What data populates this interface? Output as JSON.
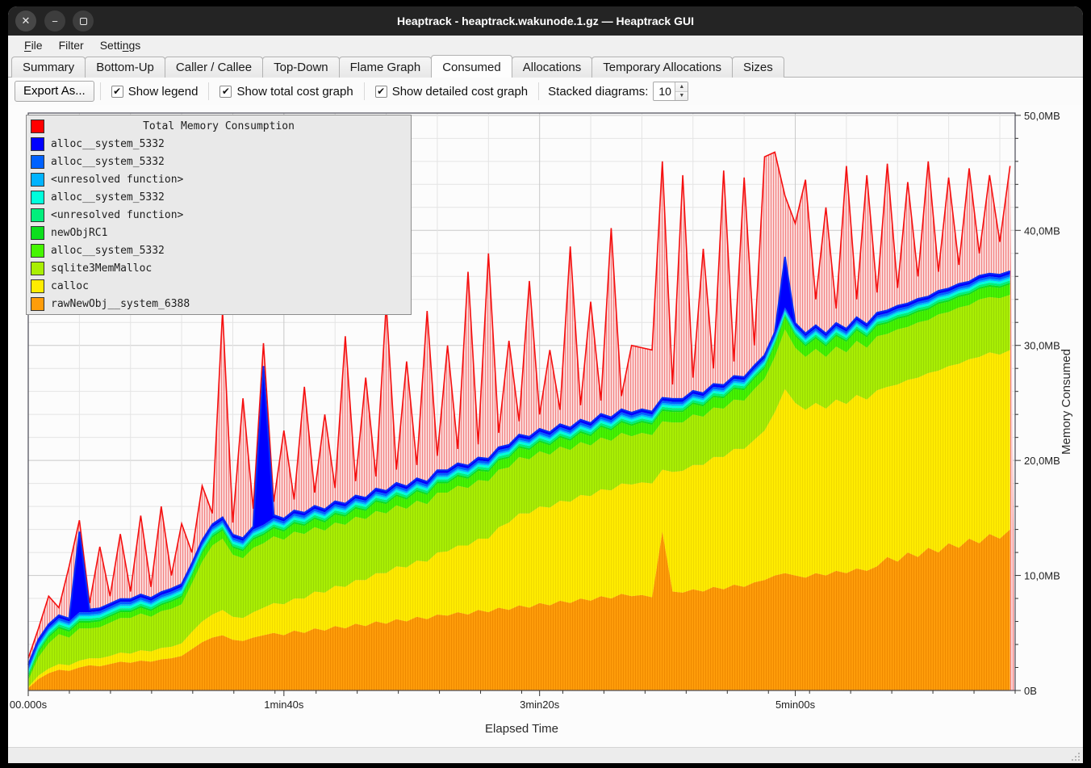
{
  "window": {
    "title": "Heaptrack - heaptrack.wakunode.1.gz — Heaptrack GUI",
    "controls": {
      "close": "✕",
      "minimize": "−",
      "maximize": ""
    }
  },
  "menu": {
    "items": [
      {
        "label": "File",
        "underline_index": 0
      },
      {
        "label": "Filter",
        "underline_index": -1
      },
      {
        "label": "Settings",
        "underline_index": 5
      }
    ]
  },
  "tabs": {
    "labels": [
      "Summary",
      "Bottom-Up",
      "Caller / Callee",
      "Top-Down",
      "Flame Graph",
      "Consumed",
      "Allocations",
      "Temporary Allocations",
      "Sizes"
    ],
    "active": "Consumed"
  },
  "toolbar": {
    "export_label": "Export As...",
    "checkboxes": [
      {
        "label": "Show legend",
        "checked": true
      },
      {
        "label": "Show total cost graph",
        "checked": true
      },
      {
        "label": "Show detailed cost graph",
        "checked": true
      }
    ],
    "stacked_label": "Stacked diagrams:",
    "stacked_value": "10",
    "check_glyph": "✔"
  },
  "chart_data": {
    "type": "area",
    "title": "Total Memory Consumption",
    "xlabel": "Elapsed Time",
    "ylabel": "Memory Consumed",
    "xlim": [
      0,
      386
    ],
    "ylim": [
      0,
      50.2
    ],
    "grid": {
      "x_step_s": 20,
      "y_step_mb": 2
    },
    "x_ticks": [
      {
        "t": 0,
        "label": "00.000s"
      },
      {
        "t": 100,
        "label": "1min40s"
      },
      {
        "t": 200,
        "label": "3min20s"
      },
      {
        "t": 300,
        "label": "5min00s"
      }
    ],
    "y_ticks": [
      {
        "mb": 0,
        "label": "0B"
      },
      {
        "mb": 10,
        "label": "10,0MB"
      },
      {
        "mb": 20,
        "label": "20,0MB"
      },
      {
        "mb": 30,
        "label": "30,0MB"
      },
      {
        "mb": 40,
        "label": "40,0MB"
      },
      {
        "mb": 50,
        "label": "50,0MB"
      }
    ],
    "legend": {
      "title": "Total Memory Consumption",
      "title_color": "#ff0000",
      "items": [
        {
          "label": "alloc__system_5332",
          "color": "#0000ff"
        },
        {
          "label": "alloc__system_5332",
          "color": "#0061ff"
        },
        {
          "label": "<unresolved function>",
          "color": "#00b3ff"
        },
        {
          "label": "alloc__system_5332",
          "color": "#00ffdc"
        },
        {
          "label": "<unresolved function>",
          "color": "#00ef7c"
        },
        {
          "label": "newObjRC1",
          "color": "#0cdf1d"
        },
        {
          "label": "alloc__system_5332",
          "color": "#46f502"
        },
        {
          "label": "sqlite3MemMalloc",
          "color": "#a9ef04"
        },
        {
          "label": "calloc",
          "color": "#ffec00"
        },
        {
          "label": "rawNewObj__system_6388",
          "color": "#ff9d0a"
        }
      ]
    },
    "columns": [
      "t_seconds",
      "rawNewObj__system_6388",
      "calloc",
      "sqlite3MemMalloc",
      "alloc__system_5332_green",
      "alloc__system_5332_darkblue",
      "total_MB"
    ],
    "series": [
      {
        "name": "rawNewObj__system_6388",
        "color": "#ff9d0a",
        "stripe": "#ef8a00",
        "row": 1
      },
      {
        "name": "calloc",
        "color": "#ffec00",
        "stripe": "#f0da00",
        "row": 2
      },
      {
        "name": "sqlite3MemMalloc",
        "color": "#a9ef04",
        "stripe": "#99d904",
        "row": 3
      },
      {
        "name": "alloc__system_5332",
        "color": "#46f502",
        "stripe": "#3cdd00",
        "row": 4
      },
      {
        "name": "newObjRC1",
        "color": "#0cdf1d",
        "const": 0.15
      },
      {
        "name": "<unresolved function>",
        "color": "#00ef7c",
        "const": 0.2
      },
      {
        "name": "alloc__system_5332",
        "color": "#00ffdc",
        "const": 0.2
      },
      {
        "name": "<unresolved function>",
        "color": "#00b3ff",
        "const": 0.15
      },
      {
        "name": "alloc__system_5332",
        "color": "#0061ff",
        "const": 0.2
      },
      {
        "name": "alloc__system_5332",
        "color": "#0000ff",
        "row": 5
      }
    ],
    "total": {
      "name": "Total Memory Consumption",
      "line_color": "#f50f0f",
      "fill_bg": "#fbd9d9",
      "fill_stripe": "#f28282",
      "row": 6
    },
    "cap_line_color": "#0a2cf5",
    "rows": [
      [
        0,
        0.2,
        0.1,
        0.6,
        0.2,
        0.25,
        2.8
      ],
      [
        4,
        1.0,
        0.3,
        1.6,
        0.4,
        0.25,
        5.4
      ],
      [
        8,
        1.5,
        0.4,
        2.2,
        0.5,
        0.25,
        8.2
      ],
      [
        12,
        1.8,
        0.5,
        2.6,
        0.5,
        0.25,
        7.2
      ],
      [
        16,
        1.7,
        0.5,
        2.4,
        0.5,
        0.25,
        10.8
      ],
      [
        20,
        2.0,
        0.6,
        2.8,
        0.5,
        7.0,
        14.8
      ],
      [
        24,
        2.2,
        0.6,
        2.6,
        0.5,
        0.25,
        7.6
      ],
      [
        28,
        2.1,
        0.7,
        2.7,
        0.5,
        0.25,
        12.5
      ],
      [
        32,
        2.3,
        0.7,
        2.9,
        0.5,
        0.25,
        8.2
      ],
      [
        36,
        2.5,
        0.8,
        3.0,
        0.5,
        0.25,
        13.6
      ],
      [
        40,
        2.4,
        0.8,
        3.1,
        0.5,
        0.25,
        8.6
      ],
      [
        44,
        2.6,
        0.9,
        3.2,
        0.5,
        0.25,
        15.2
      ],
      [
        48,
        2.5,
        0.9,
        3.0,
        0.5,
        0.25,
        9.0
      ],
      [
        52,
        2.7,
        1.0,
        3.2,
        0.5,
        0.25,
        16.0
      ],
      [
        56,
        2.8,
        1.0,
        3.3,
        0.6,
        0.25,
        10.0
      ],
      [
        60,
        3.0,
        1.1,
        3.4,
        0.6,
        0.25,
        14.5
      ],
      [
        64,
        3.6,
        1.5,
        4.2,
        0.6,
        0.25,
        12.0
      ],
      [
        68,
        4.2,
        1.8,
        5.2,
        0.7,
        0.25,
        17.8
      ],
      [
        72,
        4.6,
        2.0,
        6.0,
        0.7,
        0.25,
        15.4
      ],
      [
        76,
        4.8,
        2.2,
        6.2,
        0.7,
        0.25,
        33.0
      ],
      [
        80,
        4.4,
        2.0,
        5.4,
        0.6,
        0.25,
        14.6
      ],
      [
        84,
        4.3,
        2.0,
        5.2,
        0.6,
        0.25,
        25.4
      ],
      [
        88,
        4.6,
        2.2,
        5.6,
        0.7,
        0.25,
        15.8
      ],
      [
        92,
        4.8,
        2.4,
        5.6,
        0.7,
        13.8,
        30.2
      ],
      [
        96,
        5.0,
        2.6,
        5.8,
        0.7,
        0.25,
        16.4
      ],
      [
        100,
        4.8,
        2.7,
        5.6,
        0.7,
        0.25,
        22.6
      ],
      [
        104,
        5.2,
        2.8,
        5.8,
        0.7,
        0.25,
        16.6
      ],
      [
        108,
        5.0,
        3.0,
        5.6,
        0.7,
        0.25,
        26.4
      ],
      [
        112,
        5.4,
        3.2,
        5.6,
        0.7,
        0.25,
        17.2
      ],
      [
        116,
        5.2,
        3.3,
        5.4,
        0.7,
        0.25,
        24.0
      ],
      [
        120,
        5.6,
        3.5,
        5.5,
        0.7,
        0.25,
        17.6
      ],
      [
        124,
        5.4,
        3.6,
        5.4,
        0.7,
        0.25,
        30.8
      ],
      [
        128,
        5.8,
        3.8,
        5.5,
        0.7,
        0.25,
        18.2
      ],
      [
        132,
        5.6,
        4.0,
        5.3,
        0.7,
        0.25,
        27.2
      ],
      [
        136,
        6.0,
        4.2,
        5.4,
        0.8,
        0.25,
        18.6
      ],
      [
        140,
        5.8,
        4.4,
        5.2,
        0.8,
        0.25,
        33.6
      ],
      [
        144,
        6.2,
        4.6,
        5.3,
        0.8,
        0.25,
        19.2
      ],
      [
        148,
        6.0,
        4.7,
        5.1,
        0.8,
        0.25,
        28.6
      ],
      [
        152,
        6.4,
        4.9,
        5.2,
        0.8,
        0.25,
        19.6
      ],
      [
        156,
        6.2,
        5.0,
        5.0,
        0.8,
        0.25,
        33.0
      ],
      [
        160,
        6.6,
        5.4,
        5.2,
        0.8,
        0.25,
        20.4
      ],
      [
        164,
        6.5,
        5.6,
        5.1,
        0.8,
        0.25,
        30.0
      ],
      [
        168,
        6.8,
        5.8,
        5.2,
        0.8,
        0.25,
        21.0
      ],
      [
        172,
        6.6,
        6.0,
        5.0,
        0.8,
        0.25,
        36.4
      ],
      [
        176,
        7.0,
        6.2,
        5.1,
        0.8,
        0.25,
        21.4
      ],
      [
        180,
        6.8,
        6.4,
        5.0,
        0.8,
        0.25,
        38.0
      ],
      [
        184,
        7.2,
        7.0,
        5.0,
        0.8,
        0.25,
        22.4
      ],
      [
        188,
        7.0,
        7.6,
        4.8,
        0.8,
        0.25,
        30.4
      ],
      [
        192,
        7.4,
        8.0,
        4.9,
        0.8,
        0.25,
        23.4
      ],
      [
        196,
        7.2,
        8.2,
        4.7,
        0.8,
        0.25,
        35.6
      ],
      [
        200,
        7.6,
        8.4,
        4.8,
        0.8,
        0.25,
        24.0
      ],
      [
        204,
        7.4,
        8.5,
        4.6,
        0.8,
        0.25,
        29.6
      ],
      [
        208,
        7.8,
        8.7,
        4.7,
        0.8,
        0.25,
        24.4
      ],
      [
        212,
        7.6,
        8.8,
        4.5,
        0.8,
        0.25,
        38.6
      ],
      [
        216,
        8.0,
        9.0,
        4.6,
        0.8,
        0.25,
        24.8
      ],
      [
        220,
        7.8,
        9.1,
        4.4,
        0.8,
        0.25,
        33.8
      ],
      [
        224,
        8.2,
        9.3,
        4.5,
        0.9,
        0.25,
        25.2
      ],
      [
        228,
        8.0,
        9.4,
        4.3,
        0.9,
        0.25,
        40.2
      ],
      [
        232,
        8.4,
        9.6,
        4.4,
        0.9,
        0.25,
        25.6
      ],
      [
        236,
        8.2,
        9.7,
        4.2,
        0.9,
        0.25,
        30.0
      ],
      [
        240,
        8.3,
        9.8,
        4.3,
        0.9,
        0.25,
        29.8
      ],
      [
        244,
        8.1,
        9.9,
        4.2,
        0.9,
        0.25,
        29.6
      ],
      [
        248,
        13.8,
        5.4,
        4.2,
        0.9,
        0.25,
        46.0
      ],
      [
        252,
        8.6,
        10.4,
        4.3,
        0.9,
        0.25,
        26.6
      ],
      [
        256,
        8.5,
        10.6,
        4.2,
        0.9,
        0.25,
        44.8
      ],
      [
        260,
        8.8,
        10.8,
        4.4,
        0.9,
        0.25,
        27.2
      ],
      [
        264,
        8.6,
        11.0,
        4.2,
        0.9,
        0.25,
        38.4
      ],
      [
        268,
        9.0,
        11.3,
        4.3,
        0.9,
        0.25,
        28.0
      ],
      [
        272,
        8.8,
        11.5,
        4.2,
        0.9,
        0.25,
        45.2
      ],
      [
        276,
        9.2,
        11.8,
        4.3,
        0.9,
        0.25,
        28.6
      ],
      [
        280,
        9.0,
        12.0,
        4.2,
        0.9,
        0.25,
        44.6
      ],
      [
        284,
        9.4,
        12.4,
        4.4,
        0.9,
        0.25,
        30.0
      ],
      [
        288,
        9.6,
        13.0,
        4.5,
        0.9,
        0.25,
        46.4
      ],
      [
        292,
        10.0,
        14.2,
        4.8,
        1.0,
        0.25,
        46.8
      ],
      [
        296,
        10.2,
        16.0,
        5.2,
        1.0,
        4.4,
        43.0
      ],
      [
        300,
        10.0,
        15.0,
        4.8,
        1.0,
        0.25,
        40.6
      ],
      [
        304,
        9.8,
        14.6,
        4.6,
        0.9,
        0.25,
        44.4
      ],
      [
        308,
        10.2,
        14.8,
        4.7,
        0.9,
        0.25,
        34.0
      ],
      [
        312,
        10.0,
        14.5,
        4.5,
        0.9,
        0.25,
        42.0
      ],
      [
        316,
        10.4,
        14.9,
        4.6,
        0.9,
        0.25,
        33.2
      ],
      [
        320,
        10.2,
        14.7,
        4.5,
        0.9,
        0.25,
        45.6
      ],
      [
        324,
        10.6,
        15.1,
        4.7,
        0.9,
        0.25,
        34.0
      ],
      [
        328,
        10.4,
        14.9,
        4.5,
        0.9,
        0.25,
        44.8
      ],
      [
        332,
        10.8,
        15.3,
        4.7,
        0.9,
        0.25,
        34.6
      ],
      [
        336,
        11.6,
        14.8,
        4.6,
        0.9,
        0.25,
        45.8
      ],
      [
        340,
        11.2,
        15.4,
        4.8,
        0.9,
        0.25,
        35.0
      ],
      [
        344,
        12.0,
        15.0,
        4.6,
        0.9,
        0.25,
        44.2
      ],
      [
        348,
        11.6,
        15.6,
        4.8,
        0.9,
        0.25,
        36.0
      ],
      [
        352,
        12.4,
        15.2,
        4.6,
        0.9,
        0.25,
        46.0
      ],
      [
        356,
        12.0,
        15.8,
        4.9,
        0.9,
        0.25,
        36.4
      ],
      [
        360,
        12.8,
        15.4,
        4.7,
        0.9,
        0.25,
        44.6
      ],
      [
        364,
        12.4,
        16.0,
        4.9,
        0.9,
        0.25,
        37.0
      ],
      [
        368,
        13.2,
        15.6,
        4.7,
        0.9,
        0.25,
        45.4
      ],
      [
        372,
        12.8,
        16.2,
        5.0,
        0.9,
        0.25,
        38.0
      ],
      [
        376,
        13.6,
        15.8,
        4.8,
        0.9,
        0.25,
        44.8
      ],
      [
        380,
        13.2,
        16.0,
        4.9,
        0.9,
        0.25,
        39.0
      ],
      [
        384,
        14.0,
        15.6,
        4.8,
        0.9,
        0.25,
        45.6
      ]
    ]
  },
  "ui_colors": {
    "titlebar_bg": "#242424",
    "menubar_bg": "#f0f0f0",
    "content_bg": "#fcfcfc",
    "grid_minor": "#e4e4e4",
    "grid_major": "#c9c9c9",
    "axis_frame": "#4a4a55",
    "tick_text": "#222222"
  }
}
